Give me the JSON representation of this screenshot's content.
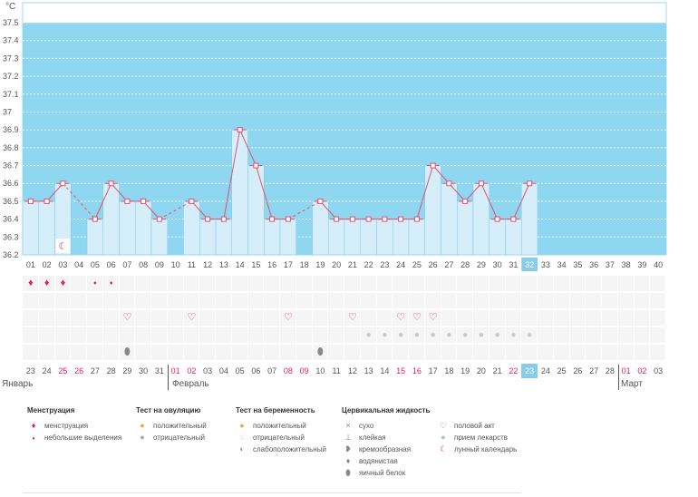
{
  "chart_data": {
    "type": "bar",
    "unit_label": "°C",
    "ylim": [
      36.2,
      37.5
    ],
    "yticks": [
      "37.5",
      "37.4",
      "37.3",
      "37.2",
      "37.1",
      "37",
      "36.9",
      "36.8",
      "36.7",
      "36.6",
      "36.5",
      "36.4",
      "36.3",
      "36.2"
    ],
    "cycle_days": [
      "01",
      "02",
      "03",
      "04",
      "05",
      "06",
      "07",
      "08",
      "09",
      "10",
      "11",
      "12",
      "13",
      "14",
      "15",
      "16",
      "17",
      "18",
      "19",
      "20",
      "21",
      "22",
      "23",
      "24",
      "25",
      "26",
      "27",
      "28",
      "29",
      "30",
      "31",
      "32",
      "33",
      "34",
      "35",
      "36",
      "37",
      "38",
      "39",
      "40"
    ],
    "values": [
      36.5,
      36.5,
      36.6,
      null,
      36.4,
      36.6,
      36.5,
      36.5,
      36.4,
      null,
      36.5,
      36.4,
      36.4,
      36.9,
      36.7,
      36.4,
      36.4,
      null,
      36.5,
      36.4,
      36.4,
      36.4,
      36.4,
      36.4,
      36.4,
      36.7,
      36.6,
      36.5,
      36.6,
      36.4,
      36.4,
      36.6,
      null,
      null,
      null,
      null,
      null,
      null,
      null,
      null
    ],
    "selected_day": "32",
    "grid": true
  },
  "calendar": {
    "dates": [
      "23",
      "24",
      "25",
      "26",
      "27",
      "28",
      "29",
      "30",
      "31",
      "01",
      "02",
      "03",
      "04",
      "05",
      "06",
      "07",
      "08",
      "09",
      "10",
      "11",
      "12",
      "13",
      "14",
      "15",
      "16",
      "17",
      "18",
      "19",
      "20",
      "21",
      "22",
      "23",
      "24",
      "25",
      "26",
      "27",
      "28",
      "01",
      "02",
      "03"
    ],
    "red_indices": [
      2,
      3,
      9,
      10,
      16,
      17,
      23,
      24,
      30,
      37,
      38
    ],
    "selected_index": 31,
    "months": [
      "Январь",
      "Февраль",
      "Март"
    ]
  },
  "markers": {
    "menstruation_heavy": [
      0,
      1,
      2
    ],
    "menstruation_light": [
      4,
      5
    ],
    "moon": [
      2
    ],
    "intercourse": [
      6,
      10,
      16,
      20,
      23,
      24,
      25
    ],
    "pills": [
      21,
      22,
      23,
      24,
      25,
      26,
      27,
      28,
      29,
      30,
      31
    ],
    "cervical_egg_white": [
      6,
      18
    ]
  },
  "legend": {
    "menstruation": {
      "title": "Менструация",
      "items": [
        "менструация",
        "небольшие выделения"
      ]
    },
    "ovulation": {
      "title": "Тест на овуляцию",
      "items": [
        "положительный",
        "отрицательный"
      ]
    },
    "pregnancy": {
      "title": "Тест на беременность",
      "items": [
        "положительный",
        "отрицательный",
        "слабоположительный"
      ]
    },
    "cervical": {
      "title": "Цервикальная жидкость",
      "items": [
        "сухо",
        "клейкая",
        "кремообразная",
        "водянистая",
        "яичный белок"
      ]
    },
    "other": {
      "items": [
        "половой акт",
        "прием лекарств",
        "лунный календарь"
      ]
    }
  },
  "colors": {
    "sky": "#8fd6f0",
    "bar": "#d6eefa",
    "bar_edge": "#7cc7e8",
    "line": "#e2506d",
    "selected": "#87cdea",
    "red": "#e0245e"
  }
}
